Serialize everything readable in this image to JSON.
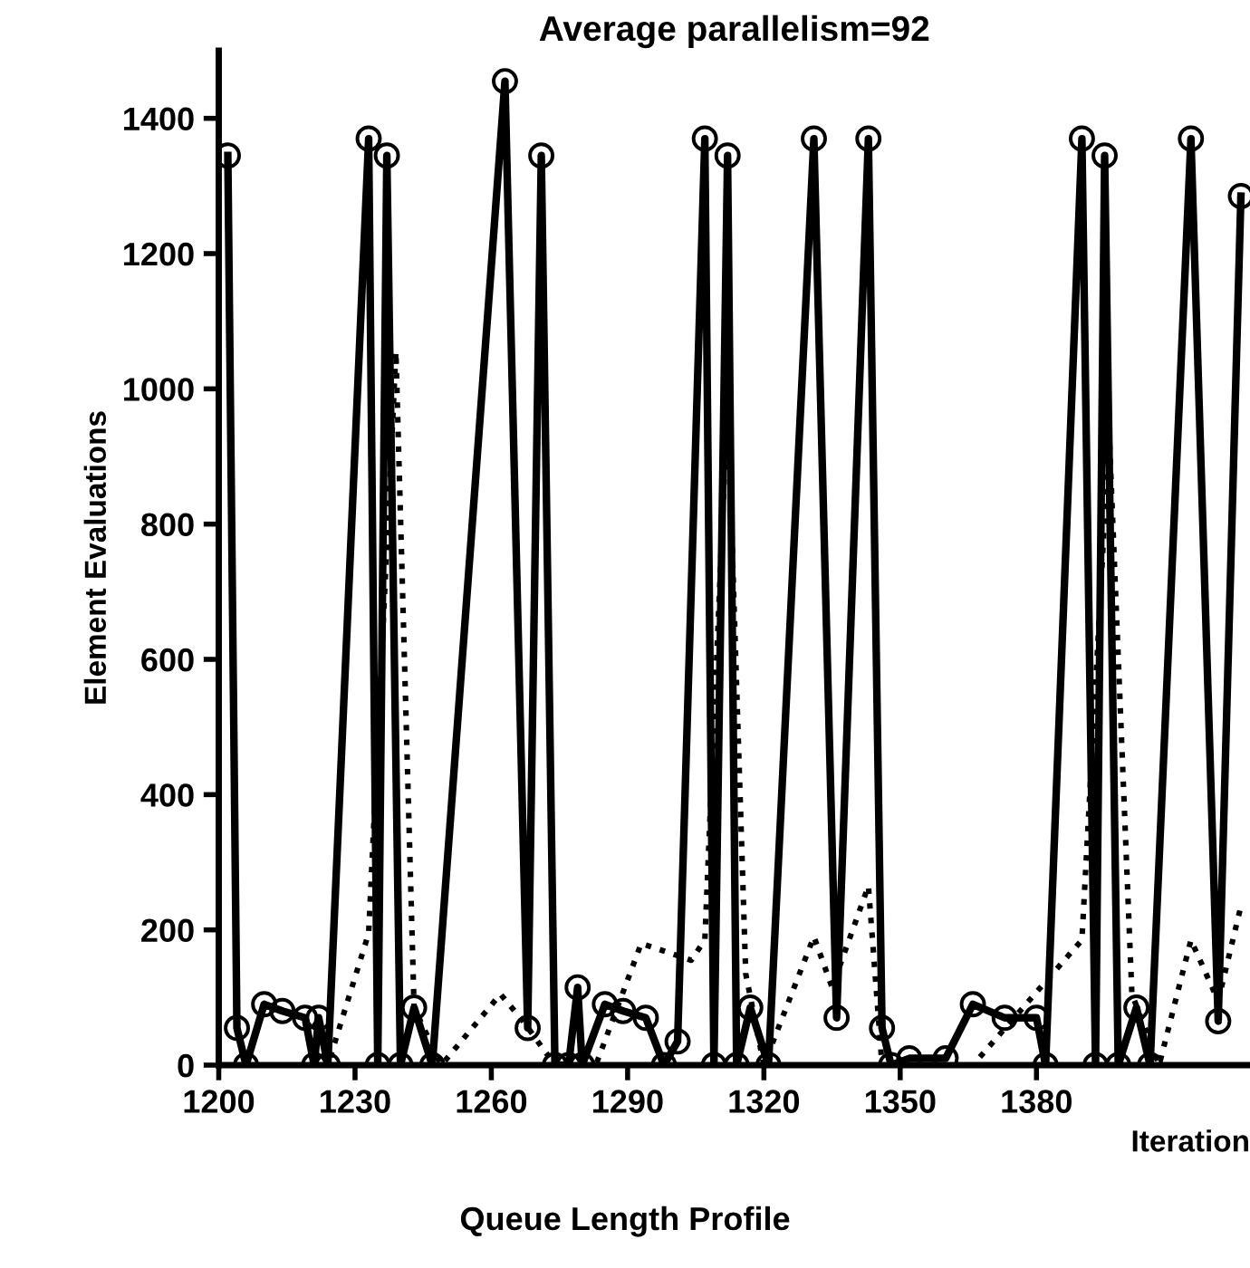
{
  "chart_data": {
    "type": "line",
    "title": "Average parallelism=92",
    "xlabel": "Iteration",
    "ylabel": "Element Evaluations",
    "annotations": [
      "Queue Length Profile"
    ],
    "xlim": [
      1200,
      1427
    ],
    "xticks": [
      1200,
      1230,
      1260,
      1290,
      1320,
      1350,
      1380
    ],
    "ylim": [
      0,
      1500
    ],
    "yticks": [
      0,
      200,
      400,
      600,
      800,
      1000,
      1200,
      1400
    ],
    "grid": false,
    "series": [
      {
        "color": "#000000",
        "marker": "circle",
        "line_style": "solid",
        "x": [
          1202,
          1204,
          1206,
          1210,
          1214,
          1219,
          1221,
          1222,
          1224,
          1233,
          1235,
          1237,
          1240,
          1243,
          1247,
          1263,
          1268,
          1271,
          1274,
          1277,
          1279,
          1280,
          1285,
          1289,
          1294,
          1298,
          1301,
          1307,
          1309,
          1312,
          1314,
          1317,
          1321,
          1331,
          1336,
          1343,
          1346,
          1348,
          1352,
          1360,
          1366,
          1373,
          1380,
          1382,
          1390,
          1393,
          1395,
          1398,
          1402,
          1405,
          1414,
          1420,
          1425
        ],
        "values": [
          1345,
          55,
          0,
          90,
          80,
          70,
          0,
          70,
          0,
          1370,
          0,
          1345,
          0,
          85,
          0,
          1455,
          55,
          1345,
          0,
          0,
          115,
          0,
          90,
          80,
          70,
          0,
          35,
          1370,
          0,
          1345,
          0,
          85,
          0,
          1370,
          70,
          1370,
          55,
          0,
          10,
          10,
          90,
          70,
          70,
          0,
          1370,
          0,
          1345,
          0,
          85,
          0,
          1370,
          65,
          1285
        ]
      },
      {
        "color": "#000000",
        "marker": "none",
        "line_style": "dotted",
        "x": [
          1200,
          1224,
          1233,
          1239,
          1243,
          1249,
          1262,
          1267,
          1274,
          1283,
          1293,
          1304,
          1307,
          1312,
          1316,
          1320,
          1331,
          1335,
          1343,
          1346,
          1366,
          1390,
          1396,
          1401,
          1407,
          1414,
          1420,
          1425
        ],
        "values": [
          0,
          0,
          195,
          1055,
          85,
          0,
          105,
          65,
          0,
          0,
          180,
          155,
          185,
          985,
          135,
          0,
          190,
          115,
          265,
          0,
          0,
          185,
          935,
          105,
          0,
          185,
          95,
          235
        ]
      }
    ]
  }
}
